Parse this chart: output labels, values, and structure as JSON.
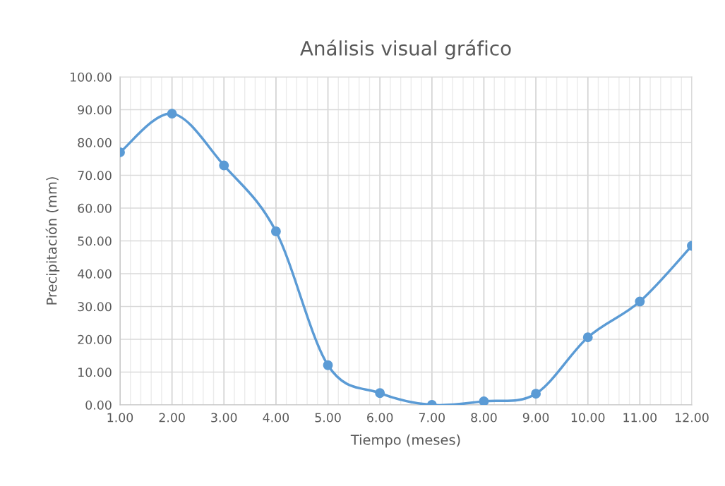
{
  "chart_data": {
    "type": "line",
    "title": "Análisis visual gráfico",
    "xlabel": "Tiempo (meses)",
    "ylabel": "Precipitación (mm)",
    "x": [
      1,
      2,
      3,
      4,
      5,
      6,
      7,
      8,
      9,
      10,
      11,
      12
    ],
    "series": [
      {
        "color": "#5b9bd5",
        "values": [
          77.0,
          88.8,
          73.0,
          52.9,
          12.1,
          3.6,
          0.0,
          1.1,
          3.4,
          20.6,
          31.5,
          48.5
        ]
      }
    ],
    "xlim": [
      1,
      12
    ],
    "ylim": [
      0,
      100
    ],
    "xticks": [
      {
        "value": 1,
        "label": "1.00"
      },
      {
        "value": 2,
        "label": "2.00"
      },
      {
        "value": 3,
        "label": "3.00"
      },
      {
        "value": 4,
        "label": "4.00"
      },
      {
        "value": 5,
        "label": "5.00"
      },
      {
        "value": 6,
        "label": "6.00"
      },
      {
        "value": 7,
        "label": "7.00"
      },
      {
        "value": 8,
        "label": "8.00"
      },
      {
        "value": 9,
        "label": "9.00"
      },
      {
        "value": 10,
        "label": "10.00"
      },
      {
        "value": 11,
        "label": "11.00"
      },
      {
        "value": 12,
        "label": "12.00"
      }
    ],
    "yticks": [
      {
        "value": 0,
        "label": "0.00"
      },
      {
        "value": 10,
        "label": "10.00"
      },
      {
        "value": 20,
        "label": "20.00"
      },
      {
        "value": 30,
        "label": "30.00"
      },
      {
        "value": 40,
        "label": "40.00"
      },
      {
        "value": 50,
        "label": "50.00"
      },
      {
        "value": 60,
        "label": "60.00"
      },
      {
        "value": 70,
        "label": "70.00"
      },
      {
        "value": 80,
        "label": "80.00"
      },
      {
        "value": 90,
        "label": "90.00"
      },
      {
        "value": 100,
        "label": "100.00"
      }
    ],
    "grid": true,
    "marker": "circle",
    "line_style": "solid",
    "legend": false
  }
}
